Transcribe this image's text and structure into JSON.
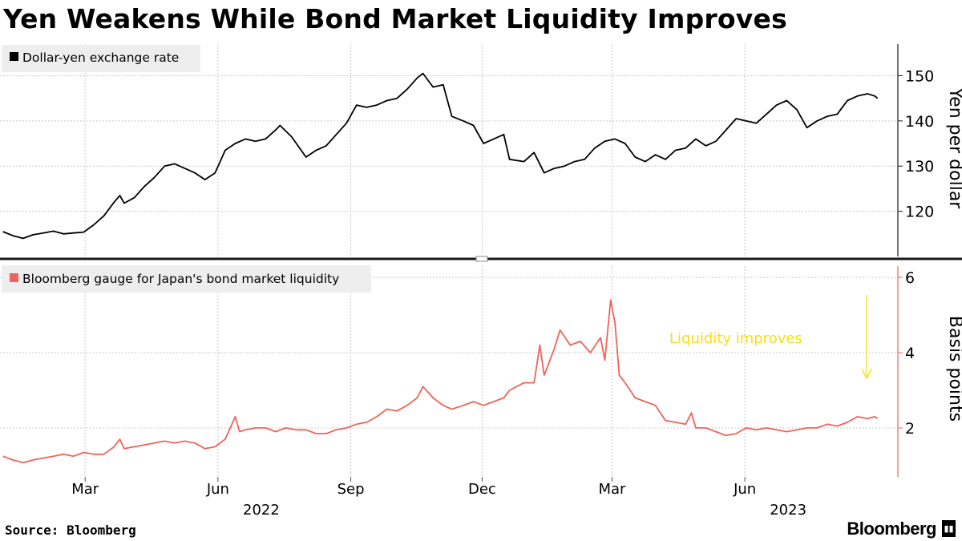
{
  "title": "Yen Weakens While Bond Market Liquidity Improves",
  "source": "Source: Bloomberg",
  "brand": "Bloomberg",
  "chart_data": [
    {
      "type": "line",
      "legend": "Dollar-yen exchange rate",
      "ylabel": "Yen per dollar",
      "yticks": [
        120,
        130,
        140,
        150
      ],
      "ylim": [
        110,
        157
      ],
      "color": "#000000",
      "series": [
        {
          "name": "Dollar-yen exchange rate",
          "points": [
            [
              "2022-01-03",
              115.5
            ],
            [
              "2022-01-10",
              114.6
            ],
            [
              "2022-01-17",
              114.0
            ],
            [
              "2022-01-24",
              114.8
            ],
            [
              "2022-01-31",
              115.2
            ],
            [
              "2022-02-07",
              115.6
            ],
            [
              "2022-02-14",
              115.0
            ],
            [
              "2022-02-21",
              115.2
            ],
            [
              "2022-02-28",
              115.4
            ],
            [
              "2022-03-07",
              117.0
            ],
            [
              "2022-03-14",
              119.0
            ],
            [
              "2022-03-21",
              122.0
            ],
            [
              "2022-03-25",
              123.5
            ],
            [
              "2022-03-28",
              121.8
            ],
            [
              "2022-04-04",
              123.0
            ],
            [
              "2022-04-11",
              125.5
            ],
            [
              "2022-04-18",
              127.5
            ],
            [
              "2022-04-25",
              130.0
            ],
            [
              "2022-05-02",
              130.5
            ],
            [
              "2022-05-09",
              129.5
            ],
            [
              "2022-05-16",
              128.5
            ],
            [
              "2022-05-23",
              127.0
            ],
            [
              "2022-05-30",
              128.5
            ],
            [
              "2022-06-06",
              133.5
            ],
            [
              "2022-06-13",
              135.0
            ],
            [
              "2022-06-20",
              136.0
            ],
            [
              "2022-06-27",
              135.5
            ],
            [
              "2022-07-04",
              136.0
            ],
            [
              "2022-07-11",
              138.0
            ],
            [
              "2022-07-14",
              139.0
            ],
            [
              "2022-07-22",
              136.5
            ],
            [
              "2022-08-01",
              132.0
            ],
            [
              "2022-08-08",
              133.5
            ],
            [
              "2022-08-15",
              134.5
            ],
            [
              "2022-08-22",
              137.0
            ],
            [
              "2022-08-29",
              139.5
            ],
            [
              "2022-09-05",
              143.5
            ],
            [
              "2022-09-12",
              143.0
            ],
            [
              "2022-09-19",
              143.5
            ],
            [
              "2022-09-26",
              144.5
            ],
            [
              "2022-10-03",
              145.0
            ],
            [
              "2022-10-10",
              147.0
            ],
            [
              "2022-10-17",
              149.5
            ],
            [
              "2022-10-21",
              150.5
            ],
            [
              "2022-10-28",
              147.5
            ],
            [
              "2022-11-04",
              148.0
            ],
            [
              "2022-11-10",
              141.0
            ],
            [
              "2022-11-18",
              140.0
            ],
            [
              "2022-11-25",
              139.0
            ],
            [
              "2022-12-02",
              135.0
            ],
            [
              "2022-12-09",
              136.0
            ],
            [
              "2022-12-16",
              137.0
            ],
            [
              "2022-12-20",
              131.5
            ],
            [
              "2022-12-30",
              131.0
            ],
            [
              "2023-01-06",
              133.0
            ],
            [
              "2023-01-13",
              128.5
            ],
            [
              "2023-01-20",
              129.5
            ],
            [
              "2023-01-27",
              130.0
            ],
            [
              "2023-02-03",
              131.0
            ],
            [
              "2023-02-10",
              131.5
            ],
            [
              "2023-02-17",
              134.0
            ],
            [
              "2023-02-24",
              135.5
            ],
            [
              "2023-03-03",
              136.0
            ],
            [
              "2023-03-10",
              135.0
            ],
            [
              "2023-03-17",
              132.0
            ],
            [
              "2023-03-24",
              131.0
            ],
            [
              "2023-03-31",
              132.5
            ],
            [
              "2023-04-07",
              131.5
            ],
            [
              "2023-04-14",
              133.5
            ],
            [
              "2023-04-21",
              134.0
            ],
            [
              "2023-04-28",
              136.0
            ],
            [
              "2023-05-05",
              134.5
            ],
            [
              "2023-05-12",
              135.5
            ],
            [
              "2023-05-19",
              138.0
            ],
            [
              "2023-05-26",
              140.5
            ],
            [
              "2023-06-02",
              140.0
            ],
            [
              "2023-06-09",
              139.5
            ],
            [
              "2023-06-16",
              141.5
            ],
            [
              "2023-06-23",
              143.5
            ],
            [
              "2023-06-30",
              144.5
            ],
            [
              "2023-07-07",
              142.5
            ],
            [
              "2023-07-14",
              138.5
            ],
            [
              "2023-07-21",
              140.0
            ],
            [
              "2023-07-28",
              141.0
            ],
            [
              "2023-08-04",
              141.5
            ],
            [
              "2023-08-11",
              144.5
            ],
            [
              "2023-08-18",
              145.5
            ],
            [
              "2023-08-25",
              146.0
            ],
            [
              "2023-08-30",
              145.5
            ],
            [
              "2023-09-01",
              145.0
            ]
          ]
        }
      ]
    },
    {
      "type": "line",
      "legend": "Bloomberg gauge for Japan's bond market liquidity",
      "ylabel": "Basis points",
      "yticks": [
        2,
        4,
        6
      ],
      "ylim": [
        0.7,
        6.3
      ],
      "color": "#f0635a",
      "annotation": {
        "text": "Liquidity improves",
        "color": "#f5e014"
      },
      "series": [
        {
          "name": "Bloomberg gauge for Japan's bond market liquidity",
          "points": [
            [
              "2022-01-03",
              1.25
            ],
            [
              "2022-01-10",
              1.15
            ],
            [
              "2022-01-17",
              1.08
            ],
            [
              "2022-01-24",
              1.15
            ],
            [
              "2022-01-31",
              1.2
            ],
            [
              "2022-02-07",
              1.25
            ],
            [
              "2022-02-14",
              1.3
            ],
            [
              "2022-02-21",
              1.25
            ],
            [
              "2022-02-28",
              1.35
            ],
            [
              "2022-03-07",
              1.3
            ],
            [
              "2022-03-14",
              1.3
            ],
            [
              "2022-03-21",
              1.5
            ],
            [
              "2022-03-25",
              1.7
            ],
            [
              "2022-03-28",
              1.45
            ],
            [
              "2022-04-04",
              1.5
            ],
            [
              "2022-04-11",
              1.55
            ],
            [
              "2022-04-18",
              1.6
            ],
            [
              "2022-04-25",
              1.65
            ],
            [
              "2022-05-02",
              1.6
            ],
            [
              "2022-05-09",
              1.65
            ],
            [
              "2022-05-16",
              1.6
            ],
            [
              "2022-05-23",
              1.45
            ],
            [
              "2022-05-30",
              1.5
            ],
            [
              "2022-06-06",
              1.7
            ],
            [
              "2022-06-13",
              2.3
            ],
            [
              "2022-06-16",
              1.9
            ],
            [
              "2022-06-20",
              1.95
            ],
            [
              "2022-06-27",
              2.0
            ],
            [
              "2022-07-04",
              2.0
            ],
            [
              "2022-07-11",
              1.9
            ],
            [
              "2022-07-18",
              2.0
            ],
            [
              "2022-07-25",
              1.95
            ],
            [
              "2022-08-01",
              1.95
            ],
            [
              "2022-08-08",
              1.85
            ],
            [
              "2022-08-15",
              1.85
            ],
            [
              "2022-08-22",
              1.95
            ],
            [
              "2022-08-29",
              2.0
            ],
            [
              "2022-09-05",
              2.1
            ],
            [
              "2022-09-12",
              2.15
            ],
            [
              "2022-09-19",
              2.3
            ],
            [
              "2022-09-26",
              2.5
            ],
            [
              "2022-10-03",
              2.45
            ],
            [
              "2022-10-10",
              2.6
            ],
            [
              "2022-10-17",
              2.8
            ],
            [
              "2022-10-21",
              3.1
            ],
            [
              "2022-10-28",
              2.8
            ],
            [
              "2022-11-04",
              2.6
            ],
            [
              "2022-11-10",
              2.5
            ],
            [
              "2022-11-18",
              2.6
            ],
            [
              "2022-11-25",
              2.7
            ],
            [
              "2022-12-02",
              2.6
            ],
            [
              "2022-12-09",
              2.7
            ],
            [
              "2022-12-16",
              2.8
            ],
            [
              "2022-12-20",
              3.0
            ],
            [
              "2022-12-30",
              3.2
            ],
            [
              "2023-01-06",
              3.2
            ],
            [
              "2023-01-10",
              4.2
            ],
            [
              "2023-01-13",
              3.4
            ],
            [
              "2023-01-20",
              4.1
            ],
            [
              "2023-01-24",
              4.6
            ],
            [
              "2023-01-31",
              4.2
            ],
            [
              "2023-02-07",
              4.3
            ],
            [
              "2023-02-14",
              4.0
            ],
            [
              "2023-02-21",
              4.4
            ],
            [
              "2023-02-24",
              3.8
            ],
            [
              "2023-02-28",
              5.4
            ],
            [
              "2023-03-03",
              4.8
            ],
            [
              "2023-03-06",
              3.4
            ],
            [
              "2023-03-10",
              3.2
            ],
            [
              "2023-03-17",
              2.8
            ],
            [
              "2023-03-24",
              2.7
            ],
            [
              "2023-03-31",
              2.6
            ],
            [
              "2023-04-07",
              2.2
            ],
            [
              "2023-04-14",
              2.15
            ],
            [
              "2023-04-21",
              2.1
            ],
            [
              "2023-04-25",
              2.4
            ],
            [
              "2023-04-28",
              2.0
            ],
            [
              "2023-05-05",
              2.0
            ],
            [
              "2023-05-12",
              1.9
            ],
            [
              "2023-05-19",
              1.8
            ],
            [
              "2023-05-26",
              1.85
            ],
            [
              "2023-06-02",
              2.0
            ],
            [
              "2023-06-09",
              1.95
            ],
            [
              "2023-06-16",
              2.0
            ],
            [
              "2023-06-23",
              1.95
            ],
            [
              "2023-06-30",
              1.9
            ],
            [
              "2023-07-07",
              1.95
            ],
            [
              "2023-07-14",
              2.0
            ],
            [
              "2023-07-21",
              2.0
            ],
            [
              "2023-07-28",
              2.1
            ],
            [
              "2023-08-04",
              2.05
            ],
            [
              "2023-08-11",
              2.15
            ],
            [
              "2023-08-18",
              2.3
            ],
            [
              "2023-08-25",
              2.25
            ],
            [
              "2023-08-30",
              2.3
            ],
            [
              "2023-09-01",
              2.25
            ]
          ]
        }
      ]
    }
  ],
  "x_axis": {
    "months": [
      {
        "label": "Mar",
        "date": "2022-03-01"
      },
      {
        "label": "Jun",
        "date": "2022-06-01"
      },
      {
        "label": "Sep",
        "date": "2022-09-01"
      },
      {
        "label": "Dec",
        "date": "2022-12-01"
      },
      {
        "label": "Mar",
        "date": "2023-03-01"
      },
      {
        "label": "Jun",
        "date": "2023-06-01"
      }
    ],
    "years": [
      {
        "label": "2022",
        "date": "2022-07-01"
      },
      {
        "label": "2023",
        "date": "2023-07-01"
      }
    ]
  },
  "colors": {
    "grid": "#c8c8c8",
    "legend_bg": "#eeeeee",
    "yen_line": "#000000",
    "liquidity_line": "#f0635a",
    "annotation": "#f5e014"
  }
}
